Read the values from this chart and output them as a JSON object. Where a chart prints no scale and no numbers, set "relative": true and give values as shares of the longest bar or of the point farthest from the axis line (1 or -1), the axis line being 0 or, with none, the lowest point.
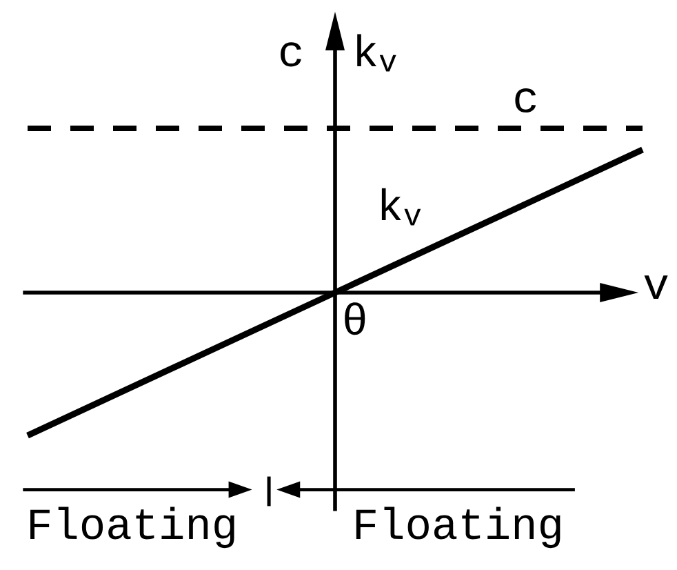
{
  "chart_data": {
    "type": "line",
    "relative": true,
    "categories": [
      null,
      null,
      null
    ],
    "xlabel": "v",
    "ylabel": "k$_{v}$",
    "series": [
      {
        "name": "c",
        "color": "#000000",
        "values": [
          1,
          1,
          1
        ],
        "line_style": "dashed"
      },
      {
        "name": "k$_{v}$",
        "color": "#000000",
        "values": [
          -0.87,
          0,
          0.87
        ],
        "line_style": "solid"
      }
    ],
    "annotations": [
      "c",
      "θ",
      "Floating",
      "Floating"
    ],
    "marker": "none"
  }
}
